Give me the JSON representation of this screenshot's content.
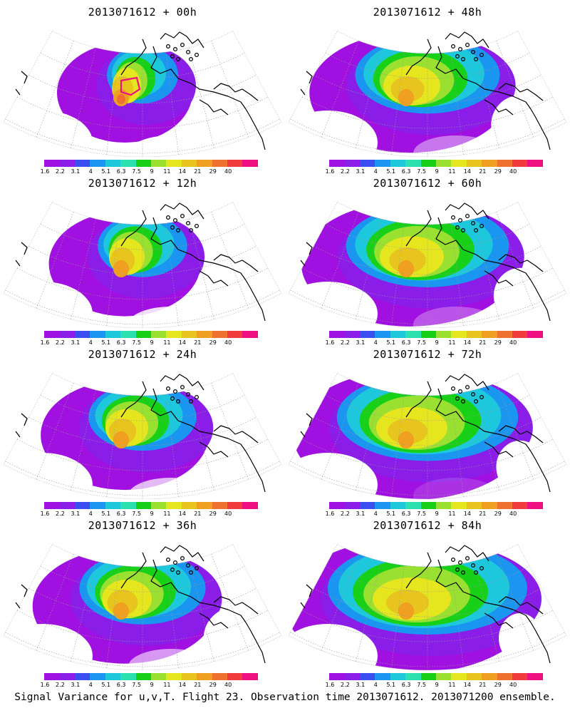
{
  "panels": [
    {
      "title": "2013071612 + 00h",
      "lead_hours": 0
    },
    {
      "title": "2013071612 + 48h",
      "lead_hours": 48
    },
    {
      "title": "2013071612 + 12h",
      "lead_hours": 12
    },
    {
      "title": "2013071612 + 60h",
      "lead_hours": 60
    },
    {
      "title": "2013071612 + 24h",
      "lead_hours": 24
    },
    {
      "title": "2013071612 + 72h",
      "lead_hours": 72
    },
    {
      "title": "2013071612 + 36h",
      "lead_hours": 36
    },
    {
      "title": "2013071612 + 84h",
      "lead_hours": 84
    }
  ],
  "colorbar": {
    "labels": [
      "1.6",
      "2.2",
      "3.1",
      "4",
      "5.1",
      "6.3",
      "7.5",
      "9",
      "11",
      "14",
      "21",
      "29",
      "40"
    ],
    "colors": [
      "#a010e0",
      "#8a1ee8",
      "#3a4ef0",
      "#1a96f0",
      "#1ec8dc",
      "#2ce0b0",
      "#18d018",
      "#9ae030",
      "#e6e61e",
      "#e8c41e",
      "#f0a020",
      "#f07030",
      "#f03c3c",
      "#ee1080"
    ]
  },
  "caption": "Signal Variance for u,v,T. Flight 23. Observation time 2013071612. 2013071200 ensemble."
}
